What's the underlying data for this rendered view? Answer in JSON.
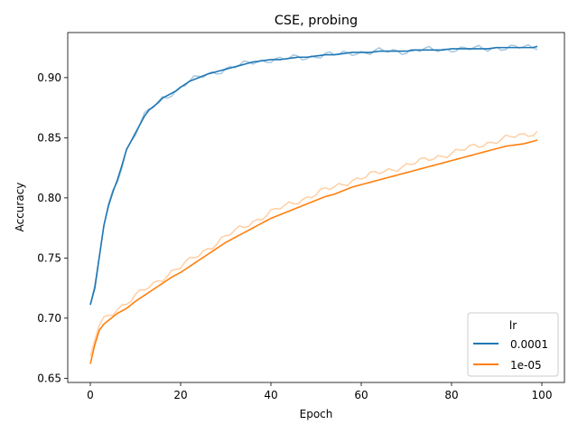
{
  "chart_data": {
    "type": "line",
    "title": "CSE, probing",
    "xlabel": "Epoch",
    "ylabel": "Accuracy",
    "xlim": [
      -5,
      105
    ],
    "ylim": [
      0.6465,
      0.9375
    ],
    "xticks": [
      0,
      20,
      40,
      60,
      80,
      100
    ],
    "yticks": [
      0.65,
      0.7,
      0.75,
      0.8,
      0.85,
      0.9
    ],
    "xtick_labels": [
      "0",
      "20",
      "40",
      "60",
      "80",
      "100"
    ],
    "ytick_labels": [
      "0.65",
      "0.70",
      "0.75",
      "0.80",
      "0.85",
      "0.90"
    ],
    "grid": false,
    "legend": {
      "title": "lr",
      "placement": "lower right"
    },
    "series": [
      {
        "name": "0.0001",
        "color": "#1f77b4",
        "raw_color": "#a6c8e0",
        "x": [
          0,
          1,
          2,
          3,
          4,
          5,
          6,
          7,
          8,
          9,
          10,
          11,
          12,
          13,
          14,
          15,
          16,
          17,
          18,
          19,
          20,
          22,
          24,
          26,
          28,
          30,
          32,
          34,
          36,
          38,
          40,
          42,
          44,
          46,
          48,
          50,
          52,
          54,
          56,
          58,
          60,
          62,
          64,
          66,
          68,
          70,
          72,
          74,
          76,
          78,
          80,
          82,
          84,
          86,
          88,
          90,
          92,
          94,
          96,
          98,
          99
        ],
        "values": [
          0.711,
          0.725,
          0.751,
          0.777,
          0.793,
          0.805,
          0.815,
          0.827,
          0.84,
          0.847,
          0.854,
          0.861,
          0.868,
          0.873,
          0.876,
          0.879,
          0.883,
          0.885,
          0.887,
          0.889,
          0.892,
          0.897,
          0.9,
          0.903,
          0.905,
          0.907,
          0.909,
          0.911,
          0.913,
          0.914,
          0.915,
          0.915,
          0.916,
          0.917,
          0.917,
          0.918,
          0.919,
          0.919,
          0.92,
          0.921,
          0.921,
          0.921,
          0.922,
          0.922,
          0.922,
          0.922,
          0.923,
          0.923,
          0.923,
          0.923,
          0.924,
          0.924,
          0.924,
          0.924,
          0.924,
          0.925,
          0.925,
          0.925,
          0.925,
          0.925,
          0.926
        ]
      },
      {
        "name": "1e-05",
        "color": "#ff7f0e",
        "raw_color": "#ffcfa4",
        "x": [
          0,
          1,
          2,
          3,
          4,
          5,
          6,
          7,
          8,
          9,
          10,
          12,
          14,
          16,
          18,
          20,
          22,
          24,
          26,
          28,
          30,
          32,
          34,
          36,
          38,
          40,
          42,
          44,
          46,
          48,
          50,
          52,
          54,
          56,
          58,
          60,
          62,
          64,
          66,
          68,
          70,
          72,
          74,
          76,
          78,
          80,
          82,
          84,
          86,
          88,
          90,
          92,
          94,
          96,
          98,
          99
        ],
        "values": [
          0.662,
          0.678,
          0.69,
          0.695,
          0.698,
          0.701,
          0.704,
          0.706,
          0.708,
          0.711,
          0.714,
          0.719,
          0.724,
          0.729,
          0.734,
          0.738,
          0.743,
          0.748,
          0.753,
          0.758,
          0.763,
          0.767,
          0.771,
          0.775,
          0.779,
          0.783,
          0.786,
          0.789,
          0.792,
          0.795,
          0.798,
          0.801,
          0.803,
          0.806,
          0.809,
          0.811,
          0.813,
          0.815,
          0.817,
          0.819,
          0.821,
          0.823,
          0.825,
          0.827,
          0.829,
          0.831,
          0.833,
          0.835,
          0.837,
          0.839,
          0.841,
          0.843,
          0.844,
          0.845,
          0.847,
          0.848
        ]
      }
    ]
  }
}
